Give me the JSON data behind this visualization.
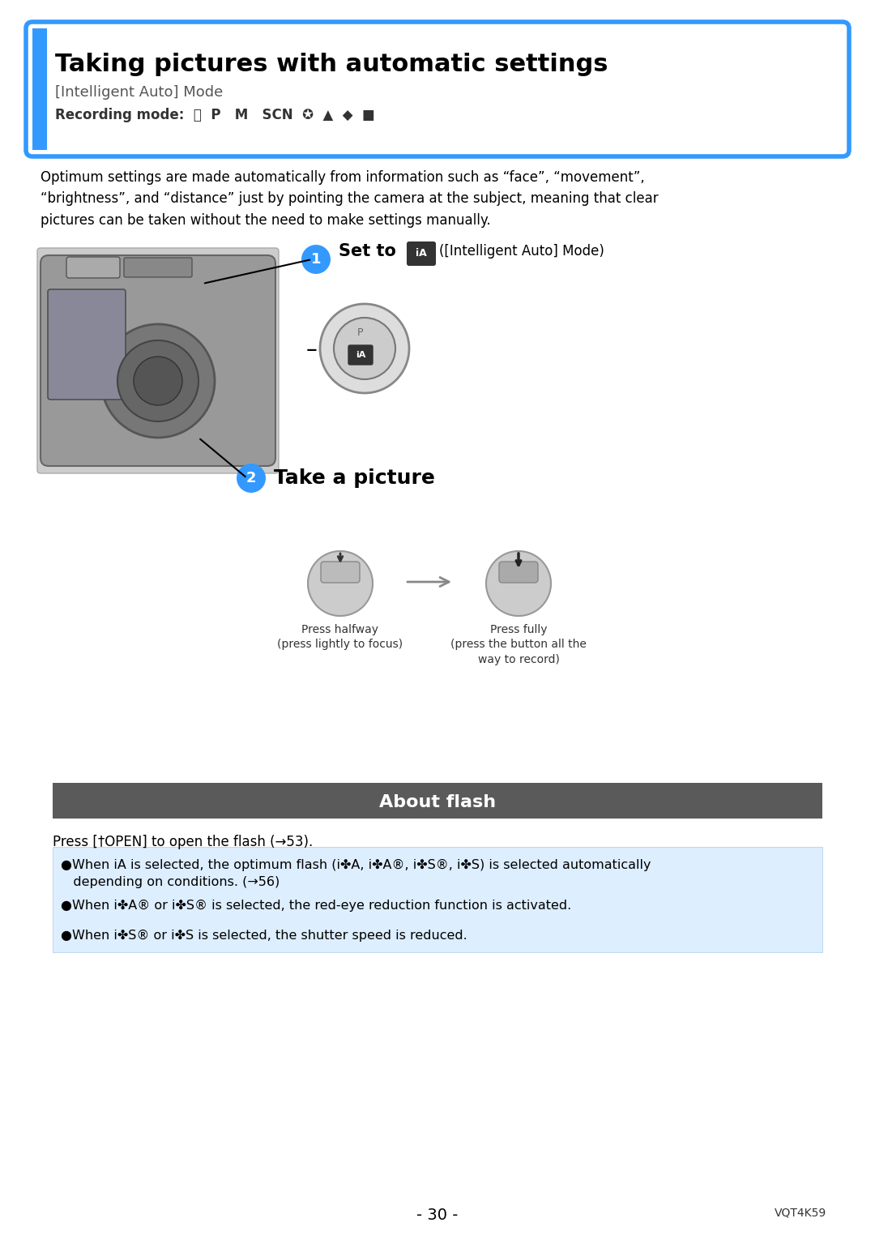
{
  "page_bg": "#ffffff",
  "header_title": "Taking pictures with automatic settings",
  "header_subtitle": "[Intelligent Auto] Mode",
  "header_rec_label": "Recording mode:",
  "header_rec_modes": "Ⓢ P  M  SCN  ★  ▲  ◆  ■",
  "header_border_color": "#3399ff",
  "header_bg": "#ffffff",
  "header_title_color": "#000000",
  "header_subtitle_color": "#555555",
  "body_text": "Optimum settings are made automatically from information such as “face”, “movement”,\n“brightness”, and “distance” just by pointing the camera at the subject, meaning that clear\npictures can be taken without the need to make settings manually.",
  "step1_num": "1",
  "step1_text": "Set to   ([Intelligent Auto] Mode)",
  "step2_num": "2",
  "step2_text": "Take a picture",
  "press_half_label": "Press halfway\n(press lightly to focus)",
  "press_full_label": "Press fully\n(press the button all the\nway to record)",
  "about_flash_title": "About flash",
  "about_flash_bg": "#5a5a5a",
  "about_flash_text_color": "#ffffff",
  "flash_intro": "Press [†OPEN] to open the flash (→53).",
  "bullet_bg": "#ddeeff",
  "bullet1": "●When ⓈⒶ is selected, the optimum flash (✤A, ✤A®, ✤S®, ✤S) is selected automatically\n   depending on conditions. (→56)",
  "bullet2": "●When ✤A® or ✤S® is selected, the red-eye reduction function is activated.",
  "bullet3": "●When ✤S® or ✤S is selected, the shutter speed is reduced.",
  "page_num": "- 30 -",
  "page_code": "VQT4K59",
  "step_circle_color": "#3399ff",
  "step_text_color": "#ffffff"
}
